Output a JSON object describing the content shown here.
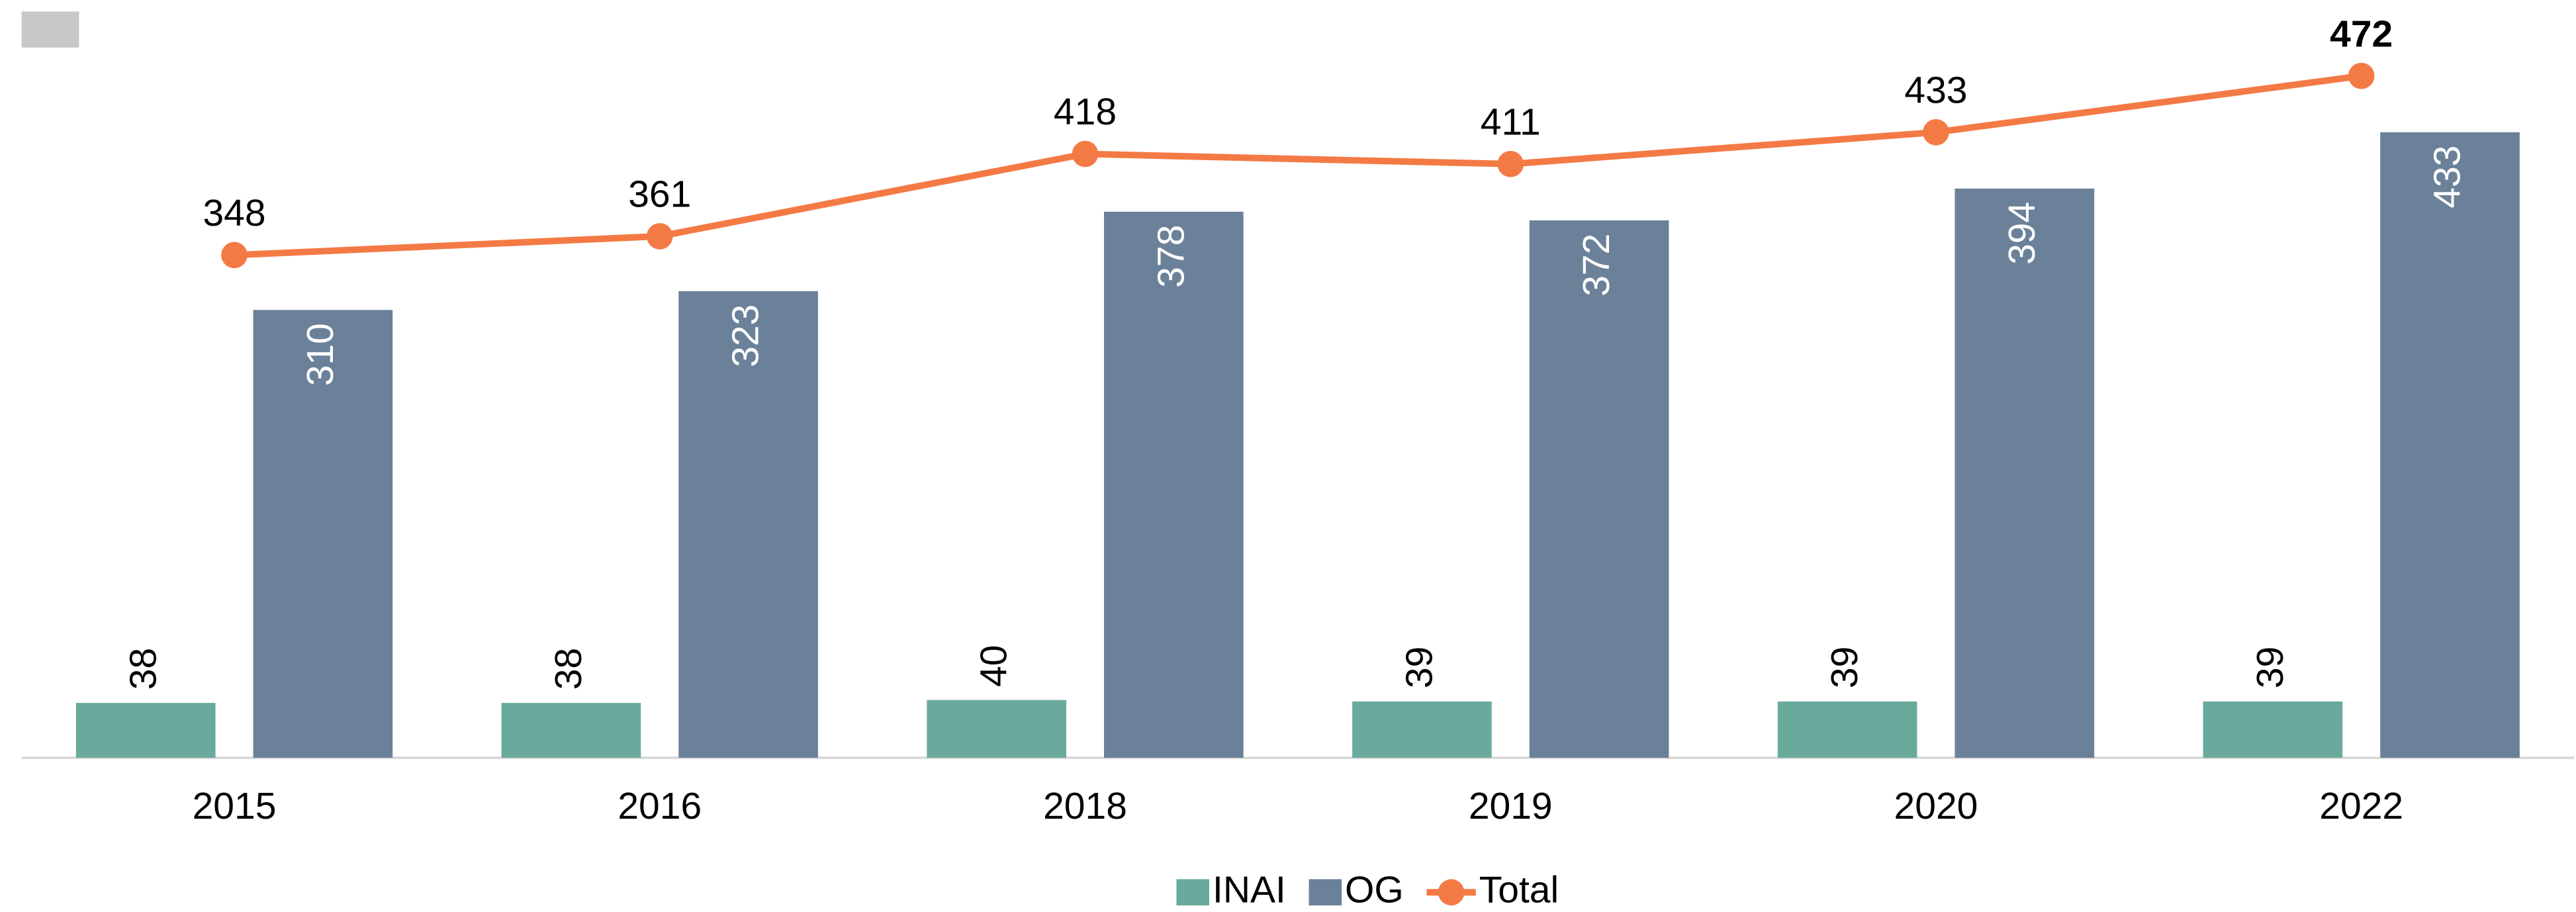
{
  "chart_data": {
    "type": "bar",
    "categories": [
      "2015",
      "2016",
      "2018",
      "2019",
      "2020",
      "2022"
    ],
    "series": [
      {
        "name": "INAI",
        "color": "#6aaa9c",
        "values": [
          38,
          38,
          40,
          39,
          39,
          39
        ]
      },
      {
        "name": "OG",
        "color": "#6b8199",
        "values": [
          310,
          323,
          378,
          372,
          394,
          433
        ]
      },
      {
        "name": "Total",
        "type": "line",
        "color": "#f47a45",
        "values": [
          348,
          361,
          418,
          411,
          433,
          472
        ]
      }
    ],
    "ylim": [
      0,
      520
    ],
    "legend": "bottom"
  }
}
